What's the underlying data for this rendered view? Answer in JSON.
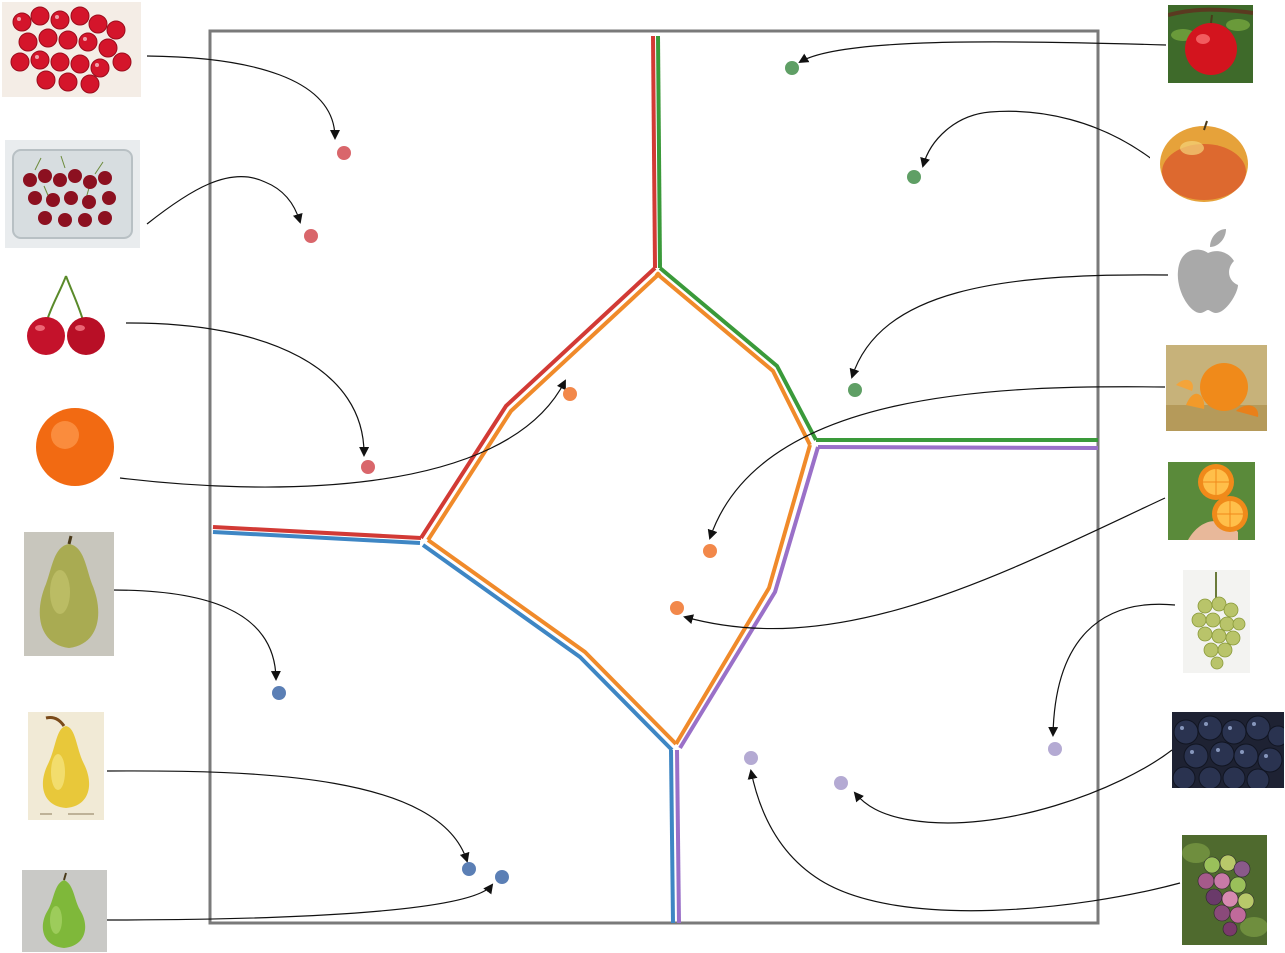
{
  "diagram": {
    "colors": {
      "frame": "#7a7a7a",
      "cherry": "#d9666b",
      "apple": "#5f9f65",
      "orange": "#f2884a",
      "pear": "#5b7fb5",
      "grape": "#b4aad3",
      "edge_red": "#d23a35",
      "edge_green": "#3a9a3a",
      "edge_orange": "#f08a2a",
      "edge_blue": "#3e86c4",
      "edge_purple": "#9a70c8",
      "arrow": "#111111"
    },
    "regions": [
      {
        "id": "cherry",
        "label": ""
      },
      {
        "id": "apple",
        "label": ""
      },
      {
        "id": "orange",
        "label": ""
      },
      {
        "id": "pear",
        "label": ""
      },
      {
        "id": "grape",
        "label": ""
      }
    ],
    "items": [
      {
        "id": "cherries-pile",
        "category": "cherry",
        "icon": "cherries-pile-photo"
      },
      {
        "id": "cherries-box",
        "category": "cherry",
        "icon": "cherries-box-photo"
      },
      {
        "id": "cherry-pair",
        "category": "cherry",
        "icon": "cherry-pair-photo"
      },
      {
        "id": "orange-whole",
        "category": "orange",
        "icon": "orange-photo"
      },
      {
        "id": "pear-green",
        "category": "pear",
        "icon": "pear-photo"
      },
      {
        "id": "pear-drawing",
        "category": "pear",
        "icon": "pear-illustration"
      },
      {
        "id": "pear-small",
        "category": "pear",
        "icon": "pear-photo"
      },
      {
        "id": "apple-tree",
        "category": "apple",
        "icon": "red-apple-photo"
      },
      {
        "id": "apple-yellow-red",
        "category": "apple",
        "icon": "apple-photo"
      },
      {
        "id": "apple-logo",
        "category": "apple",
        "icon": "apple-logo"
      },
      {
        "id": "orange-peeled",
        "category": "orange",
        "icon": "orange-peel-painting"
      },
      {
        "id": "orange-halves",
        "category": "orange",
        "icon": "orange-halves-photo"
      },
      {
        "id": "grapes-green",
        "category": "grape",
        "icon": "green-grapes-photo"
      },
      {
        "id": "grapes-dark",
        "category": "grape",
        "icon": "dark-grapes-photo"
      },
      {
        "id": "grapes-mixed",
        "category": "grape",
        "icon": "mixed-grapes-photo"
      }
    ]
  }
}
